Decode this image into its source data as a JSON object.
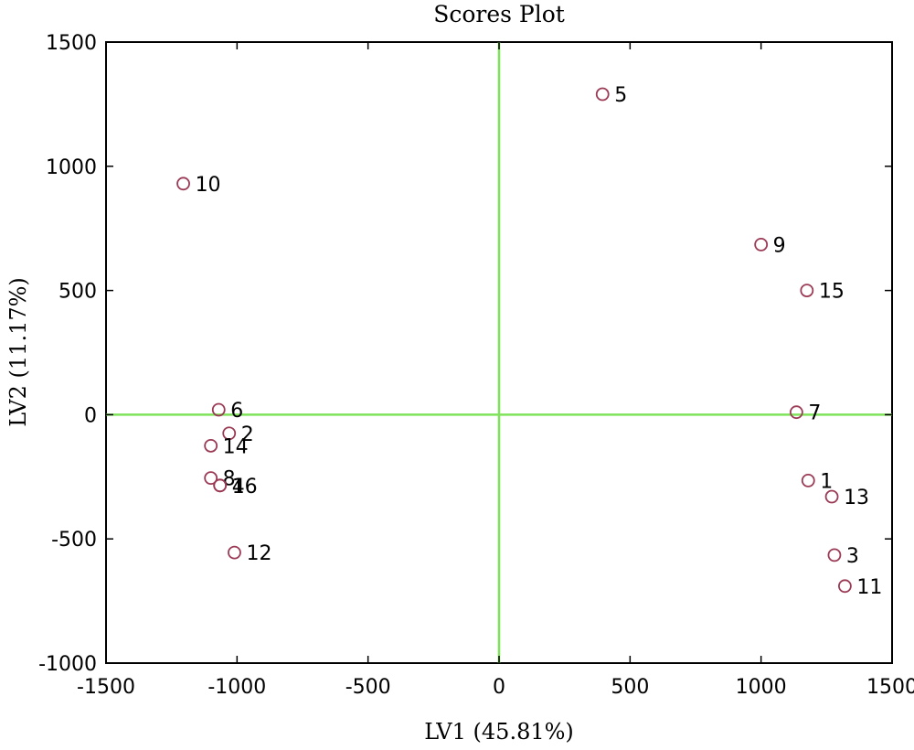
{
  "chart_data": {
    "type": "scatter",
    "title": "Scores Plot",
    "xlabel": "LV1 (45.81%)",
    "ylabel": "LV2 (11.17%)",
    "xlim": [
      -1500,
      1500
    ],
    "ylim": [
      -1000,
      1500
    ],
    "xticks": [
      -1500,
      -1000,
      -500,
      0,
      500,
      1000,
      1500
    ],
    "yticks": [
      -1000,
      -500,
      0,
      500,
      1000,
      1500
    ],
    "grid": false,
    "reference_lines": {
      "x": 0,
      "y": 0,
      "color": "#7fe35a"
    },
    "marker": {
      "shape": "open-circle",
      "color": "#9b3a55"
    },
    "points": [
      {
        "label": "1",
        "x": 1180,
        "y": -265
      },
      {
        "label": "2",
        "x": -1030,
        "y": -75
      },
      {
        "label": "3",
        "x": 1280,
        "y": -565
      },
      {
        "label": "4",
        "x": -1065,
        "y": -285
      },
      {
        "label": "5",
        "x": 395,
        "y": 1290
      },
      {
        "label": "6",
        "x": -1070,
        "y": 20
      },
      {
        "label": "7",
        "x": 1135,
        "y": 10
      },
      {
        "label": "8",
        "x": -1100,
        "y": -255
      },
      {
        "label": "9",
        "x": 1000,
        "y": 685
      },
      {
        "label": "10",
        "x": -1205,
        "y": 930
      },
      {
        "label": "11",
        "x": 1320,
        "y": -690
      },
      {
        "label": "12",
        "x": -1010,
        "y": -555
      },
      {
        "label": "13",
        "x": 1270,
        "y": -330
      },
      {
        "label": "14",
        "x": -1100,
        "y": -125
      },
      {
        "label": "15",
        "x": 1175,
        "y": 500
      },
      {
        "label": "16",
        "x": -1065,
        "y": -285
      }
    ]
  }
}
